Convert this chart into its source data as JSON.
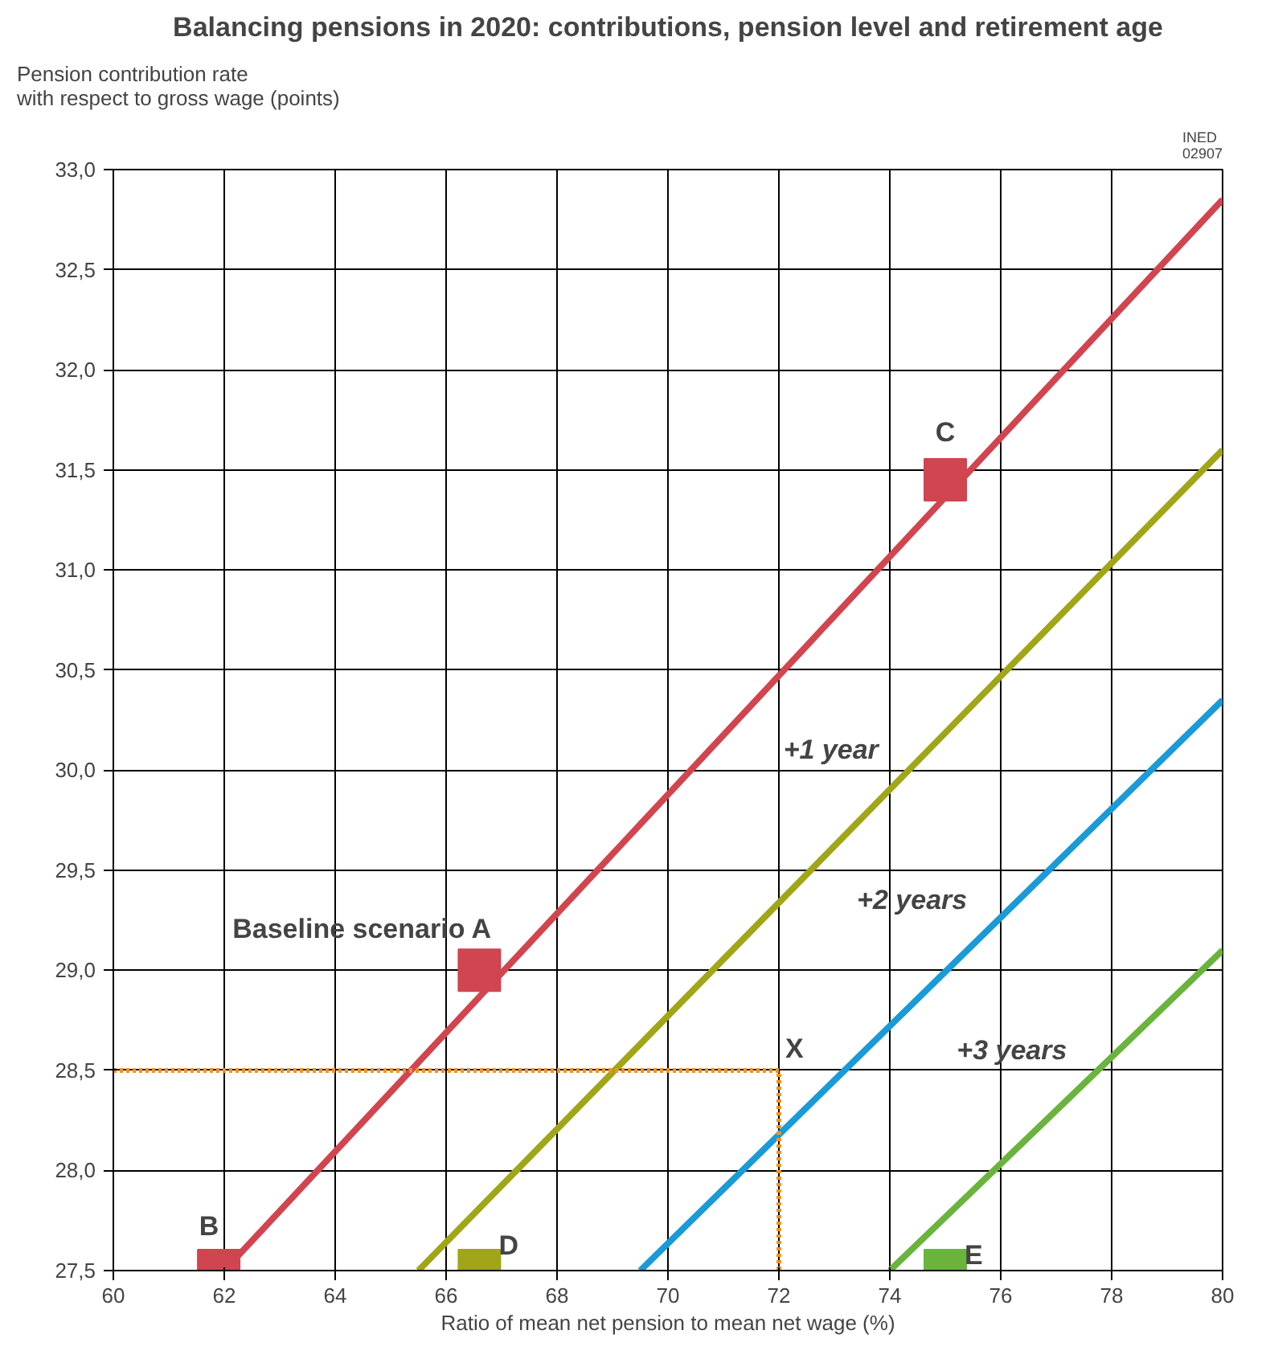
{
  "chart_data": {
    "type": "line",
    "title": "Balancing pensions in 2020: contributions, pension level and retirement age",
    "xlabel": "Ratio of mean net pension to mean net wage (%)",
    "ylabel": "Pension contribution rate\nwith respect to gross wage (points)",
    "xlim": [
      60,
      80
    ],
    "xticks": [
      60,
      62,
      64,
      66,
      68,
      70,
      72,
      74,
      76,
      78,
      80
    ],
    "ylim": [
      27.5,
      33
    ],
    "yticks": [
      {
        "value": 27.5,
        "label": "27,5"
      },
      {
        "value": 28,
        "label": "28,0"
      },
      {
        "value": 28.5,
        "label": "28,5"
      },
      {
        "value": 29,
        "label": "29,0"
      },
      {
        "value": 29.5,
        "label": "29,5"
      },
      {
        "value": 30,
        "label": "30,0"
      },
      {
        "value": 30.5,
        "label": "30,5"
      },
      {
        "value": 31,
        "label": "31,0"
      },
      {
        "value": 31.5,
        "label": "31,5"
      },
      {
        "value": 32,
        "label": "32,0"
      },
      {
        "value": 32.5,
        "label": "32,5"
      },
      {
        "value": 33,
        "label": "33,0"
      }
    ],
    "grid": true,
    "series": [
      {
        "color": "#d0454f",
        "x": [
          62,
          80
        ],
        "values": [
          27.5,
          32.85
        ]
      },
      {
        "name": "+1 year",
        "color": "#a0a617",
        "x": [
          65.5,
          80
        ],
        "values": [
          27.5,
          31.6
        ]
      },
      {
        "name": "+2 years",
        "color": "#1a9ad6",
        "x": [
          69.5,
          80
        ],
        "values": [
          27.5,
          30.35
        ]
      },
      {
        "name": "+3 years",
        "color": "#6ab43e",
        "x": [
          74,
          80
        ],
        "values": [
          27.5,
          29.1
        ]
      },
      {
        "color": "#f39321",
        "line_style": "dotted",
        "x": [
          60,
          72,
          72
        ],
        "values": [
          28.5,
          28.5,
          27.5
        ]
      },
      {
        "type": "scatter",
        "marker": "square",
        "x": [
          66.6,
          61.9,
          75,
          66.6,
          75
        ],
        "values": [
          29.0,
          27.5,
          31.45,
          27.5,
          27.5
        ],
        "colors": [
          "#d0454f",
          "#d0454f",
          "#d0454f",
          "#a0a617",
          "#6ab43e"
        ]
      }
    ],
    "annotations": [
      {
        "text": "Baseline scenario A",
        "x": 66.6,
        "y": 29.0
      },
      {
        "text": "B",
        "x": 61.9,
        "y": 27.5
      },
      {
        "text": "C",
        "x": 75,
        "y": 31.45
      },
      {
        "text": "D",
        "x": 66.6,
        "y": 27.5
      },
      {
        "text": "E",
        "x": 75,
        "y": 27.5
      },
      {
        "text": "X",
        "x": 72,
        "y": 28.5
      },
      "INED\n02907"
    ]
  }
}
